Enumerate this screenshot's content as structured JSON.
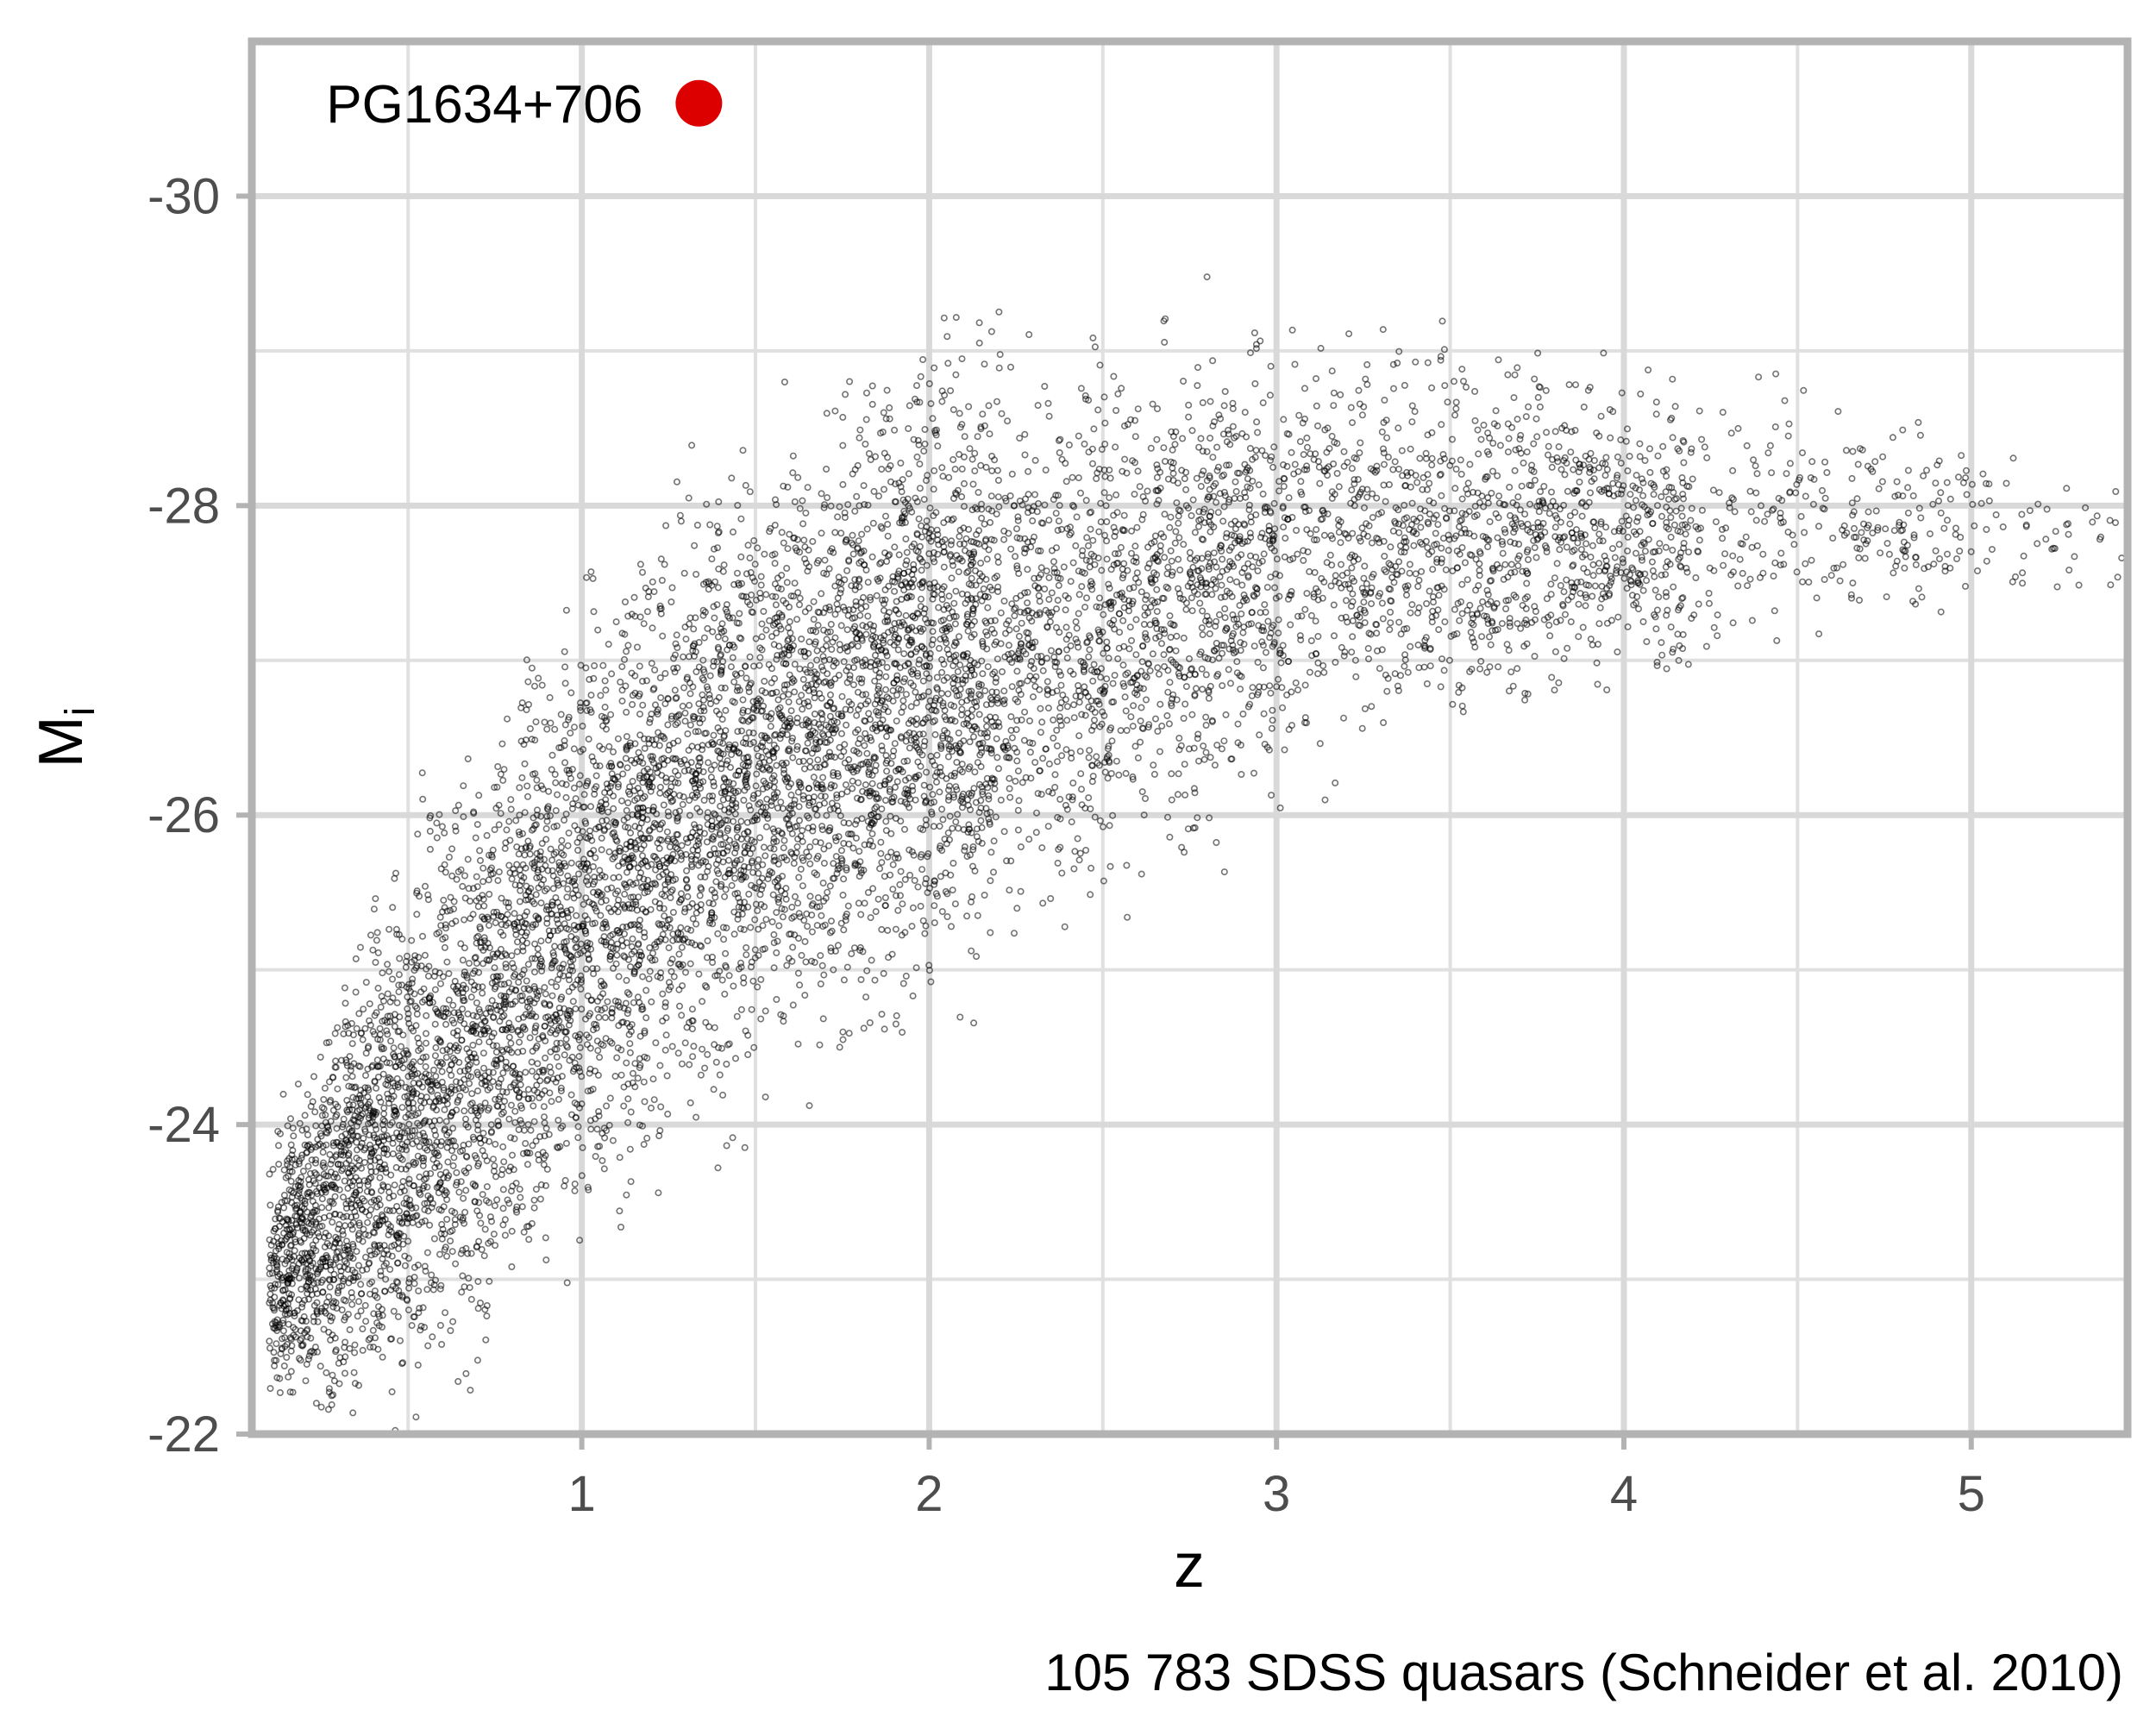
{
  "chart_data": {
    "type": "scatter",
    "title": "",
    "xlabel": "z",
    "ylabel_main": "M",
    "ylabel_sub": "i",
    "caption": "105 783 SDSS quasars (Schneider et al. 2010)",
    "xlim": [
      0.05,
      5.45
    ],
    "ylim": [
      -22,
      -31
    ],
    "x_ticks": [
      1,
      2,
      3,
      4,
      5
    ],
    "x_tick_labels": [
      "1",
      "2",
      "3",
      "4",
      "5"
    ],
    "y_ticks": [
      -30,
      -28,
      -26,
      -24,
      -22
    ],
    "y_tick_labels": [
      "-30",
      "-28",
      "-26",
      "-24",
      "-22"
    ],
    "grid": true,
    "highlight": {
      "name": "PG1634+706",
      "x": 1.337,
      "y": -30.6,
      "color": "#dd0000"
    },
    "series": [
      {
        "name": "SDSS quasars",
        "count": 105783,
        "color": "#000000",
        "envelope_lower_Mi": [
          {
            "z": 0.1,
            "Mi": -22.0
          },
          {
            "z": 0.5,
            "Mi": -22.0
          },
          {
            "z": 0.8,
            "Mi": -22.6
          },
          {
            "z": 1.0,
            "Mi": -23.0
          },
          {
            "z": 1.5,
            "Mi": -24.0
          },
          {
            "z": 2.0,
            "Mi": -24.6
          },
          {
            "z": 2.5,
            "Mi": -25.2
          },
          {
            "z": 3.0,
            "Mi": -25.8
          },
          {
            "z": 3.5,
            "Mi": -26.3
          },
          {
            "z": 4.0,
            "Mi": -26.7
          },
          {
            "z": 4.5,
            "Mi": -27.0
          },
          {
            "z": 5.0,
            "Mi": -27.2
          },
          {
            "z": 5.4,
            "Mi": -27.3
          }
        ],
        "envelope_upper_Mi": [
          {
            "z": 0.1,
            "Mi": -24.0
          },
          {
            "z": 0.5,
            "Mi": -26.0
          },
          {
            "z": 1.0,
            "Mi": -27.7
          },
          {
            "z": 1.5,
            "Mi": -28.6
          },
          {
            "z": 2.0,
            "Mi": -29.3
          },
          {
            "z": 2.5,
            "Mi": -29.3
          },
          {
            "z": 3.0,
            "Mi": -29.5
          },
          {
            "z": 3.5,
            "Mi": -29.2
          },
          {
            "z": 4.0,
            "Mi": -29.0
          },
          {
            "z": 4.5,
            "Mi": -28.9
          },
          {
            "z": 5.0,
            "Mi": -28.5
          },
          {
            "z": 5.4,
            "Mi": -28.2
          }
        ]
      }
    ]
  }
}
